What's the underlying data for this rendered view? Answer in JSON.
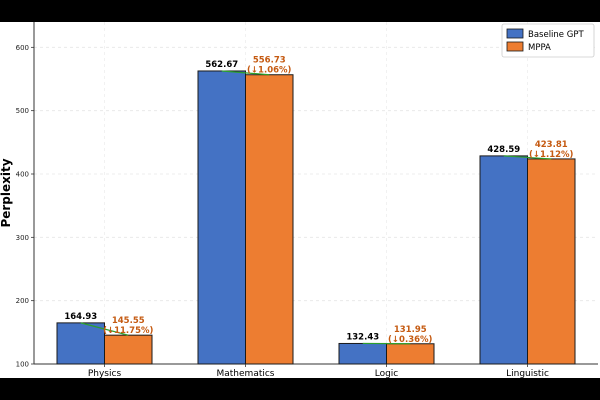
{
  "chart_data": {
    "type": "bar",
    "title": "",
    "xlabel": "",
    "ylabel": "Perplexity",
    "ylim": [
      100,
      640
    ],
    "yticks": [
      100,
      200,
      300,
      400,
      500,
      600
    ],
    "grid": true,
    "legend_position": "top-right",
    "categories": [
      "Physics",
      "Mathematics",
      "Logic",
      "Linguistic"
    ],
    "series": [
      {
        "name": "Baseline GPT",
        "color": "#4472c4",
        "values": [
          164.93,
          562.67,
          132.43,
          428.59
        ],
        "labels": [
          "164.93",
          "562.67",
          "132.43",
          "428.59"
        ]
      },
      {
        "name": "MPPA",
        "color": "#ed7d31",
        "values": [
          145.55,
          556.73,
          131.95,
          423.81
        ],
        "labels": [
          "145.55",
          "556.73",
          "131.95",
          "423.81"
        ],
        "change_labels": [
          "(↓11.75%)",
          "(↓1.06%)",
          "(↓0.36%)",
          "(↓1.12%)"
        ]
      }
    ],
    "connector_color": "#2ca02c",
    "annotation_color": "#c55a11"
  }
}
